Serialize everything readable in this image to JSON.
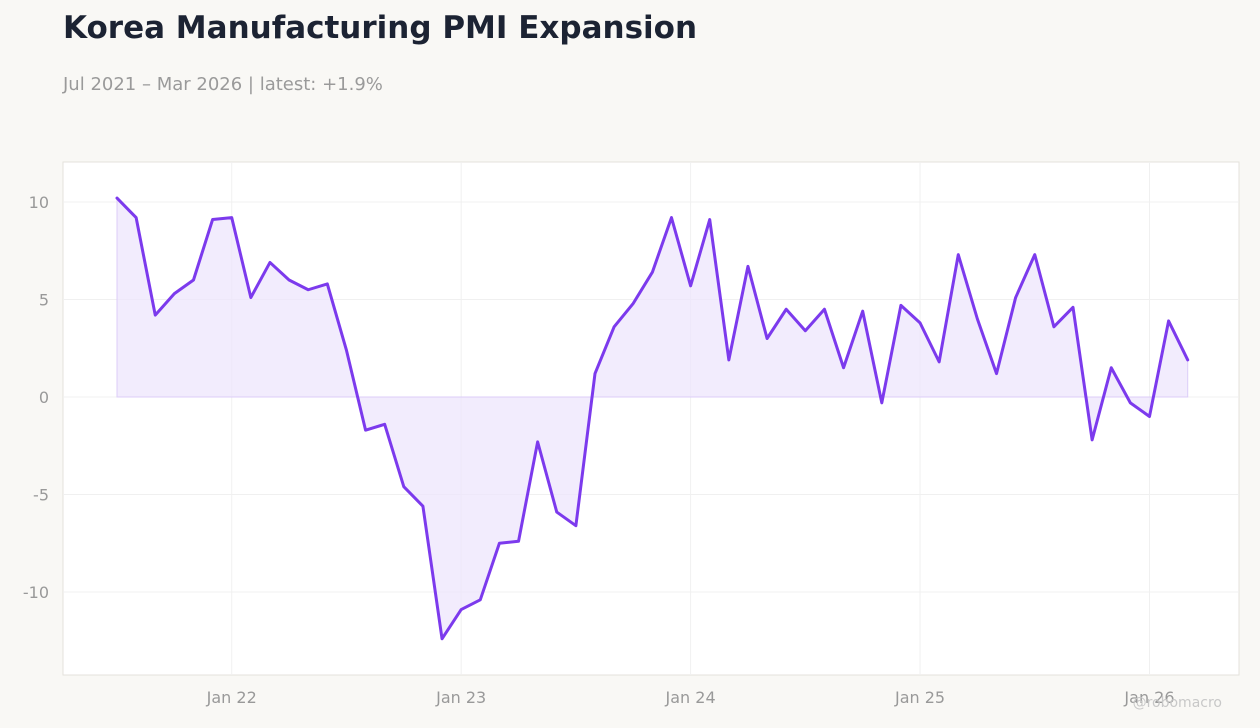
{
  "header": {
    "title": "Korea Manufacturing PMI Expansion",
    "subtitle": "Jul 2021 – Mar 2026 | latest: +1.9%"
  },
  "watermark": "@robomacro",
  "colors": {
    "background": "#f9f8f5",
    "plot_background": "#ffffff",
    "line": "#7c3aed",
    "fill": "#ede4fc",
    "grid": "#f0f0f0",
    "tick_text": "#999999"
  },
  "chart_data": {
    "type": "area",
    "x": [
      "2021-07",
      "2021-08",
      "2021-09",
      "2021-10",
      "2021-11",
      "2021-12",
      "2022-01",
      "2022-02",
      "2022-03",
      "2022-04",
      "2022-05",
      "2022-06",
      "2022-07",
      "2022-08",
      "2022-09",
      "2022-10",
      "2022-11",
      "2022-12",
      "2023-01",
      "2023-02",
      "2023-03",
      "2023-04",
      "2023-05",
      "2023-06",
      "2023-07",
      "2023-08",
      "2023-09",
      "2023-10",
      "2023-11",
      "2023-12",
      "2024-01",
      "2024-02",
      "2024-03",
      "2024-04",
      "2024-05",
      "2024-06",
      "2024-07",
      "2024-08",
      "2024-09",
      "2024-10",
      "2024-11",
      "2024-12",
      "2025-01",
      "2025-02",
      "2025-03",
      "2025-04",
      "2025-05",
      "2025-06",
      "2025-07",
      "2025-08",
      "2025-09",
      "2025-10",
      "2025-11",
      "2025-12",
      "2026-01",
      "2026-02",
      "2026-03"
    ],
    "series": [
      {
        "values": [
          10.2,
          9.2,
          4.2,
          5.3,
          6.0,
          9.1,
          9.2,
          5.1,
          6.9,
          6.0,
          5.5,
          5.8,
          2.4,
          -1.7,
          -1.4,
          -4.6,
          -5.6,
          -12.4,
          -10.9,
          -10.4,
          -7.5,
          -7.4,
          -2.3,
          -5.9,
          -6.6,
          1.2,
          3.6,
          4.8,
          6.4,
          9.2,
          5.7,
          9.1,
          1.9,
          6.7,
          3.0,
          4.5,
          3.4,
          4.5,
          1.5,
          4.4,
          -0.3,
          4.7,
          3.8,
          1.8,
          7.3,
          4.0,
          1.2,
          5.1,
          7.3,
          3.6,
          4.6,
          -2.2,
          1.5,
          -0.3,
          -1.0,
          3.9,
          1.9
        ]
      }
    ],
    "x_ticks": [
      "Jan 22",
      "Jan 23",
      "Jan 24",
      "Jan 25",
      "Jan 26"
    ],
    "y_ticks": [
      "10",
      "5",
      "0",
      "-5",
      "-10"
    ],
    "ylim": [
      -14.3,
      12.1
    ],
    "baseline": 0,
    "grid": true
  }
}
